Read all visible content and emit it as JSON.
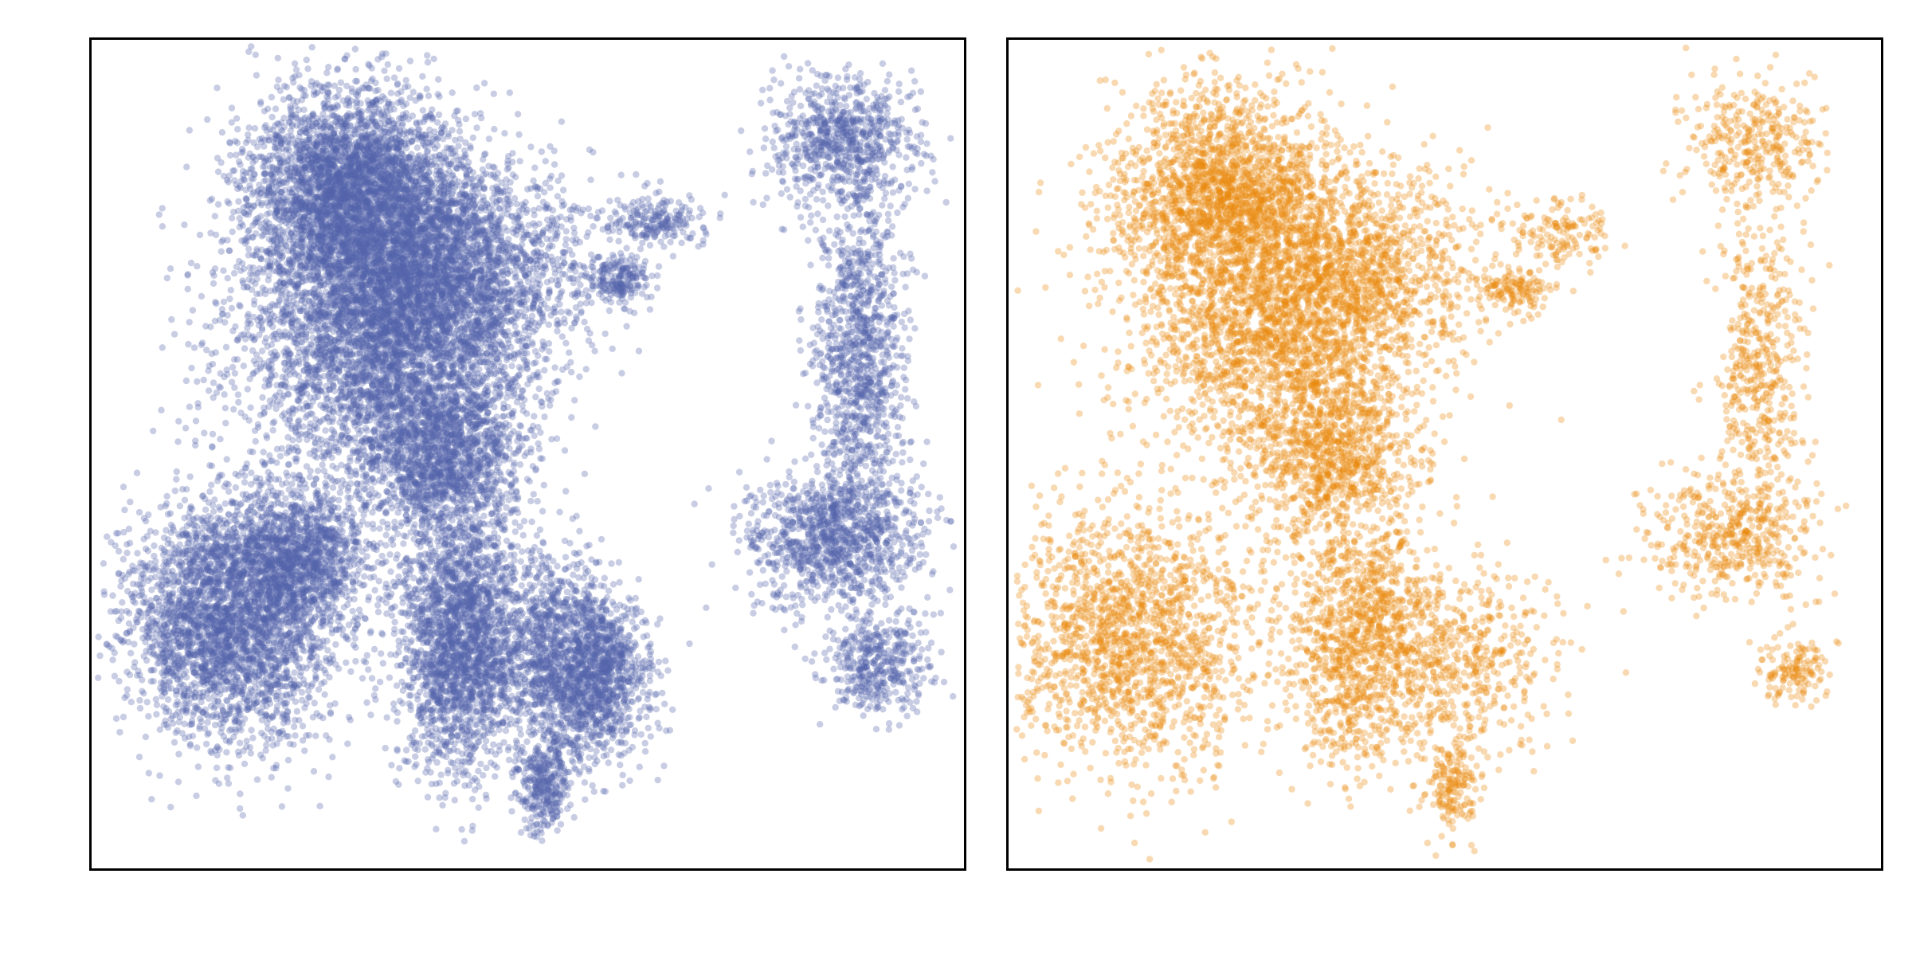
{
  "chart_data": [
    {
      "type": "scatter",
      "title": "",
      "xlabel": "",
      "ylabel": "",
      "axes_ticks": false,
      "grid": false,
      "series": [
        {
          "color": "#5462AC",
          "opacity": 0.32,
          "density": 0.55,
          "clusters": [
            {
              "cx": 0.3,
              "cy": 0.18,
              "sx": 0.06,
              "sy": 0.06,
              "w": 6
            },
            {
              "cx": 0.33,
              "cy": 0.34,
              "sx": 0.08,
              "sy": 0.09,
              "w": 8
            },
            {
              "cx": 0.42,
              "cy": 0.28,
              "sx": 0.07,
              "sy": 0.07,
              "w": 4
            },
            {
              "cx": 0.4,
              "cy": 0.5,
              "sx": 0.05,
              "sy": 0.05,
              "w": 3
            },
            {
              "cx": 0.16,
              "cy": 0.7,
              "sx": 0.06,
              "sy": 0.07,
              "w": 6
            },
            {
              "cx": 0.24,
              "cy": 0.62,
              "sx": 0.04,
              "sy": 0.04,
              "w": 2
            },
            {
              "cx": 0.42,
              "cy": 0.72,
              "sx": 0.035,
              "sy": 0.08,
              "w": 4
            },
            {
              "cx": 0.52,
              "cy": 0.74,
              "sx": 0.04,
              "sy": 0.06,
              "w": 2
            },
            {
              "cx": 0.58,
              "cy": 0.77,
              "sx": 0.03,
              "sy": 0.05,
              "w": 2
            },
            {
              "cx": 0.52,
              "cy": 0.9,
              "sx": 0.015,
              "sy": 0.03,
              "w": 0.6
            },
            {
              "cx": 0.6,
              "cy": 0.29,
              "sx": 0.02,
              "sy": 0.015,
              "w": 0.4
            },
            {
              "cx": 0.65,
              "cy": 0.22,
              "sx": 0.03,
              "sy": 0.015,
              "w": 0.4
            },
            {
              "cx": 0.86,
              "cy": 0.12,
              "sx": 0.04,
              "sy": 0.04,
              "w": 1.4
            },
            {
              "cx": 0.88,
              "cy": 0.38,
              "sx": 0.025,
              "sy": 0.1,
              "w": 2
            },
            {
              "cx": 0.85,
              "cy": 0.6,
              "sx": 0.05,
              "sy": 0.04,
              "w": 2
            },
            {
              "cx": 0.9,
              "cy": 0.75,
              "sx": 0.03,
              "sy": 0.03,
              "w": 0.8
            }
          ]
        }
      ]
    },
    {
      "type": "scatter",
      "title": "",
      "xlabel": "",
      "ylabel": "",
      "axes_ticks": false,
      "grid": false,
      "series": [
        {
          "color": "#E8890C",
          "opacity": 0.32,
          "density": 0.28,
          "clusters": [
            {
              "cx": 0.24,
              "cy": 0.18,
              "sx": 0.06,
              "sy": 0.06,
              "w": 6
            },
            {
              "cx": 0.3,
              "cy": 0.34,
              "sx": 0.08,
              "sy": 0.09,
              "w": 8
            },
            {
              "cx": 0.4,
              "cy": 0.28,
              "sx": 0.07,
              "sy": 0.07,
              "w": 4
            },
            {
              "cx": 0.37,
              "cy": 0.5,
              "sx": 0.05,
              "sy": 0.05,
              "w": 3
            },
            {
              "cx": 0.14,
              "cy": 0.72,
              "sx": 0.07,
              "sy": 0.08,
              "w": 6
            },
            {
              "cx": 0.4,
              "cy": 0.72,
              "sx": 0.04,
              "sy": 0.08,
              "w": 4
            },
            {
              "cx": 0.52,
              "cy": 0.75,
              "sx": 0.05,
              "sy": 0.06,
              "w": 2
            },
            {
              "cx": 0.51,
              "cy": 0.9,
              "sx": 0.015,
              "sy": 0.03,
              "w": 0.6
            },
            {
              "cx": 0.58,
              "cy": 0.3,
              "sx": 0.02,
              "sy": 0.015,
              "w": 0.5
            },
            {
              "cx": 0.63,
              "cy": 0.23,
              "sx": 0.03,
              "sy": 0.02,
              "w": 0.5
            },
            {
              "cx": 0.85,
              "cy": 0.12,
              "sx": 0.04,
              "sy": 0.04,
              "w": 1.2
            },
            {
              "cx": 0.86,
              "cy": 0.4,
              "sx": 0.025,
              "sy": 0.1,
              "w": 1.8
            },
            {
              "cx": 0.83,
              "cy": 0.6,
              "sx": 0.05,
              "sy": 0.04,
              "w": 1.6
            },
            {
              "cx": 0.9,
              "cy": 0.76,
              "sx": 0.02,
              "sy": 0.02,
              "w": 0.5
            }
          ]
        }
      ]
    }
  ]
}
